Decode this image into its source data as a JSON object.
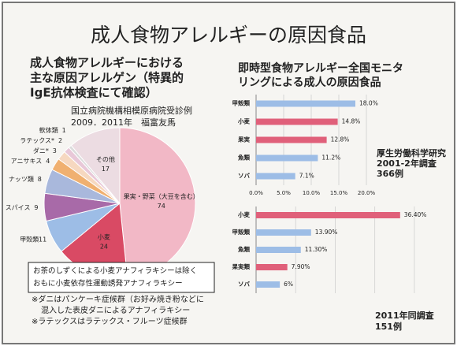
{
  "title": "成人食物アレルギーの原因食品",
  "chart_data": [
    {
      "type": "pie",
      "title": [
        "成人食物アレルギーにおける",
        "主な原因アレルゲン（特異的",
        "IgE抗体検査にて確認）"
      ],
      "subtitle": [
        "国立病院機構相模原病院受診例",
        "2009．2011年　福富友馬"
      ],
      "categories": [
        "果実・野菜（大豆を含む）",
        "小麦",
        "甲殻類",
        "スパイス",
        "ナッツ類",
        "アニサキス",
        "ダニ*",
        "ラテックス*",
        "軟体類",
        "その他"
      ],
      "values": [
        74,
        24,
        11,
        9,
        8,
        4,
        3,
        2,
        1,
        17
      ],
      "colors": [
        "#f2b8c6",
        "#d94a64",
        "#9dbde6",
        "#a86aa8",
        "#a9b8dc",
        "#f0b070",
        "#f6d8c0",
        "#e8c8d8",
        "#dcdcdc",
        "#ecdce2"
      ],
      "callout": [
        "お茶のしずくによる小麦アナフィラキシーは除く",
        "おもに小麦依存性運動誘発アナフィラキシー"
      ]
    },
    {
      "type": "hbar",
      "title": [
        "即時型食物アレルギー全国モニタ",
        "リングによる成人の原因食品"
      ],
      "categories": [
        "甲殻類",
        "小麦",
        "果実",
        "魚類",
        "ソバ"
      ],
      "values": [
        18.0,
        14.8,
        12.8,
        11.2,
        7.1
      ],
      "value_labels": [
        "18.0%",
        "14.8%",
        "12.8%",
        "11.2%",
        "7.1%"
      ],
      "colors": [
        "#9dbde6",
        "#e0607a",
        "#e0607a",
        "#9dbde6",
        "#9dbde6"
      ],
      "xlim": [
        0,
        20
      ],
      "xticks": [
        {
          "value": 0,
          "label": "0.0%"
        },
        {
          "value": 5,
          "label": "5.0%"
        },
        {
          "value": 10,
          "label": "10.0%"
        },
        {
          "value": 15,
          "label": "15.0%"
        },
        {
          "value": 20,
          "label": "20.0%"
        }
      ],
      "show_xtick_labels": true,
      "grid": true,
      "annotation": [
        "厚生労働科学研究",
        "2001-2年調査",
        "366例"
      ]
    },
    {
      "type": "hbar",
      "categories": [
        "小麦",
        "甲殻類",
        "魚類",
        "果実類",
        "ソバ"
      ],
      "values": [
        36.4,
        13.9,
        11.3,
        7.9,
        6
      ],
      "value_labels": [
        "36.40%",
        "13.90%",
        "11.30%",
        "7.90%",
        "6%"
      ],
      "colors": [
        "#e0607a",
        "#9dbde6",
        "#9dbde6",
        "#e0607a",
        "#9dbde6"
      ],
      "xlim": [
        0,
        45
      ],
      "xticks": [
        0,
        10,
        20,
        30,
        40
      ],
      "show_xtick_labels": false,
      "grid": true,
      "annotation": [
        "2011年同調査",
        "151例"
      ]
    }
  ],
  "notes": [
    {
      "lines": [
        "※ダニはパンケーキ症候群（お好み焼き粉などに",
        "混入した表皮ダニによるアナフィラキシー"
      ],
      "color": "#d0204a"
    },
    {
      "lines": [
        "※ラテックスはラテックス・フルーツ症候群"
      ],
      "color": "#222222"
    }
  ]
}
